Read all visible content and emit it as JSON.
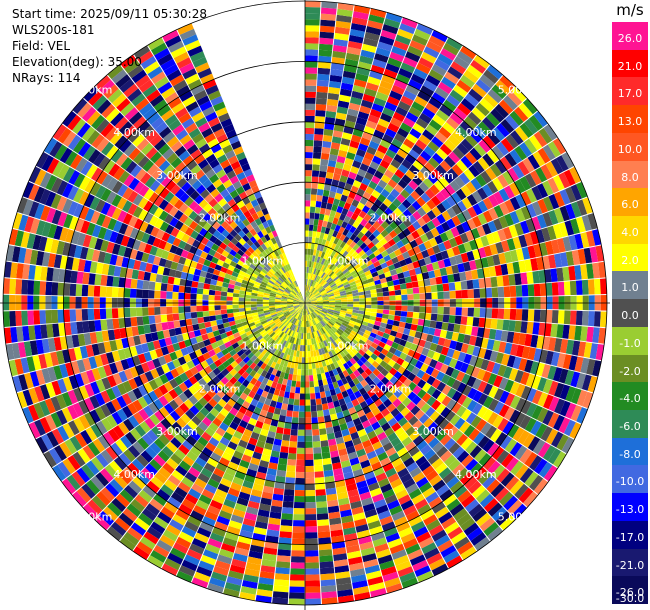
{
  "header": {
    "start_time": "Start time: 2025/09/11 05:30:28",
    "instrument": "WLS200s-181",
    "field": "Field: VEL",
    "elevation": "Elevation(deg): 35.00",
    "nrays": "NRays: 114"
  },
  "chart_data": {
    "type": "ppi-polar",
    "colorbar_unit": "m/s",
    "colorbar_ticks": [
      "26.0",
      "21.0",
      "17.0",
      "13.0",
      "10.0",
      "8.0",
      "6.0",
      "4.0",
      "2.0",
      "1.0",
      "0.0",
      "-1.0",
      "-2.0",
      "-4.0",
      "-6.0",
      "-8.0",
      "-10.0",
      "-13.0",
      "-17.0",
      "-21.0",
      "-26.0",
      "-30.0"
    ],
    "colorbar_colors": [
      "#ff1493",
      "#ff0000",
      "#ff2a2a",
      "#ff4500",
      "#ff5722",
      "#ff7f50",
      "#ffa500",
      "#ffd700",
      "#ffff00",
      "#708090",
      "#505050",
      "#9acd32",
      "#6b8e23",
      "#228b22",
      "#2e8b57",
      "#1e6fd9",
      "#4169e1",
      "#0000ff",
      "#000080",
      "#191970",
      "#0a0a5a"
    ],
    "range_rings_km": [
      1.0,
      2.0,
      3.0,
      4.0,
      5.0
    ],
    "range_labels": [
      "1.00km",
      "2.00km",
      "3.00km",
      "4.00km",
      "5.00km"
    ],
    "max_range_km": 5.0,
    "gap_azimuth_deg": [
      338,
      359
    ],
    "nrays": 114
  }
}
